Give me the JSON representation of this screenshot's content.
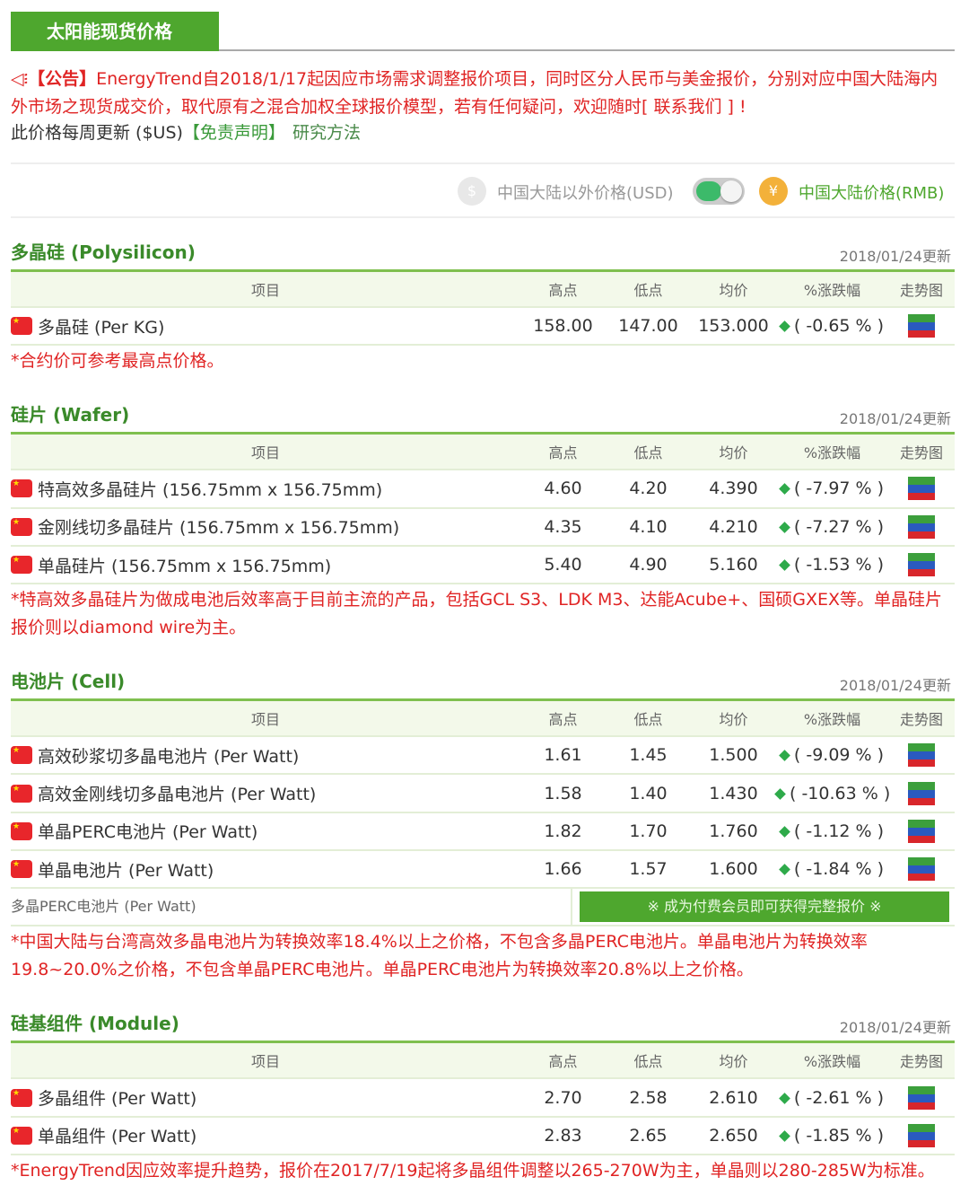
{
  "title": "太阳能现货价格",
  "notice": {
    "icon": "speaker-icon",
    "label": "【公告】",
    "text": "EnergyTrend自2018/1/17起因应市场需求调整报价项目，同时区分人民币与美金报价，分别对应中国大陆海内外市场之现货成交价，取代原有之混合加权全球报价模型，若有任何疑问，欢迎随时[ 联系我们 ] !"
  },
  "sub": {
    "text": "此价格每周更新 ($US)",
    "disclaimer": "【免责声明】",
    "method": "研究方法"
  },
  "toggle": {
    "usd_label": "中国大陆以外价格(USD)",
    "rmb_label": "中国大陆价格(RMB)",
    "usd_symbol": "$",
    "rmb_symbol": "¥",
    "selected": "RMB"
  },
  "columns": [
    "项目",
    "高点",
    "低点",
    "均价",
    "%涨跌幅",
    "走势图"
  ],
  "colors": {
    "brand_green": "#4ea72e",
    "notice_red": "#e02424",
    "down": "#2eaa4a"
  },
  "sections": [
    {
      "title": "多晶硅 (Polysilicon)",
      "date": "2018/01/24更新",
      "rows": [
        {
          "item": "多晶硅 (Per KG)",
          "high": "158.00",
          "low": "147.00",
          "avg": "153.000",
          "change": "( -0.65 % )"
        }
      ],
      "note": "*合约价可参考最高点价格。"
    },
    {
      "title": "硅片 (Wafer)",
      "date": "2018/01/24更新",
      "rows": [
        {
          "item": "特高效多晶硅片 (156.75mm x 156.75mm)",
          "high": "4.60",
          "low": "4.20",
          "avg": "4.390",
          "change": "( -7.97 % )"
        },
        {
          "item": "金刚线切多晶硅片 (156.75mm x 156.75mm)",
          "high": "4.35",
          "low": "4.10",
          "avg": "4.210",
          "change": "( -7.27 % )"
        },
        {
          "item": "单晶硅片 (156.75mm x 156.75mm)",
          "high": "5.40",
          "low": "4.90",
          "avg": "5.160",
          "change": "( -1.53 % )"
        }
      ],
      "note": "*特高效多晶硅片为做成电池后效率高于目前主流的产品，包括GCL S3、LDK M3、达能Acube+、国硕GXEX等。单晶硅片报价则以diamond wire为主。"
    },
    {
      "title": "电池片 (Cell)",
      "date": "2018/01/24更新",
      "rows": [
        {
          "item": "高效砂浆切多晶电池片 (Per Watt)",
          "high": "1.61",
          "low": "1.45",
          "avg": "1.500",
          "change": "( -9.09 % )"
        },
        {
          "item": "高效金刚线切多晶电池片 (Per Watt)",
          "high": "1.58",
          "low": "1.40",
          "avg": "1.430",
          "change": "( -10.63 % )"
        },
        {
          "item": "单晶PERC电池片 (Per Watt)",
          "high": "1.82",
          "low": "1.70",
          "avg": "1.760",
          "change": "( -1.12 % )"
        },
        {
          "item": "单晶电池片 (Per Watt)",
          "high": "1.66",
          "low": "1.57",
          "avg": "1.600",
          "change": "( -1.84 % )"
        }
      ],
      "member": {
        "item": "多晶PERC电池片 (Per Watt)",
        "button": "※ 成为付费会员即可获得完整报价 ※"
      },
      "note": "*中国大陆与台湾高效多晶电池片为转换效率18.4%以上之价格，不包含多晶PERC电池片。单晶电池片为转换效率19.8~20.0%之价格，不包含单晶PERC电池片。单晶PERC电池片为转换效率20.8%以上之价格。"
    },
    {
      "title": "硅基组件 (Module)",
      "date": "2018/01/24更新",
      "rows": [
        {
          "item": "多晶组件 (Per Watt)",
          "high": "2.70",
          "low": "2.58",
          "avg": "2.610",
          "change": "( -2.61 % )"
        },
        {
          "item": "单晶组件 (Per Watt)",
          "high": "2.83",
          "low": "2.65",
          "avg": "2.650",
          "change": "( -1.85 % )"
        }
      ],
      "note": "*EnergyTrend因应效率提升趋势，报价在2017/7/19起将多晶组件调整以265-270W为主，单晶则以280-285W为标准。"
    }
  ]
}
